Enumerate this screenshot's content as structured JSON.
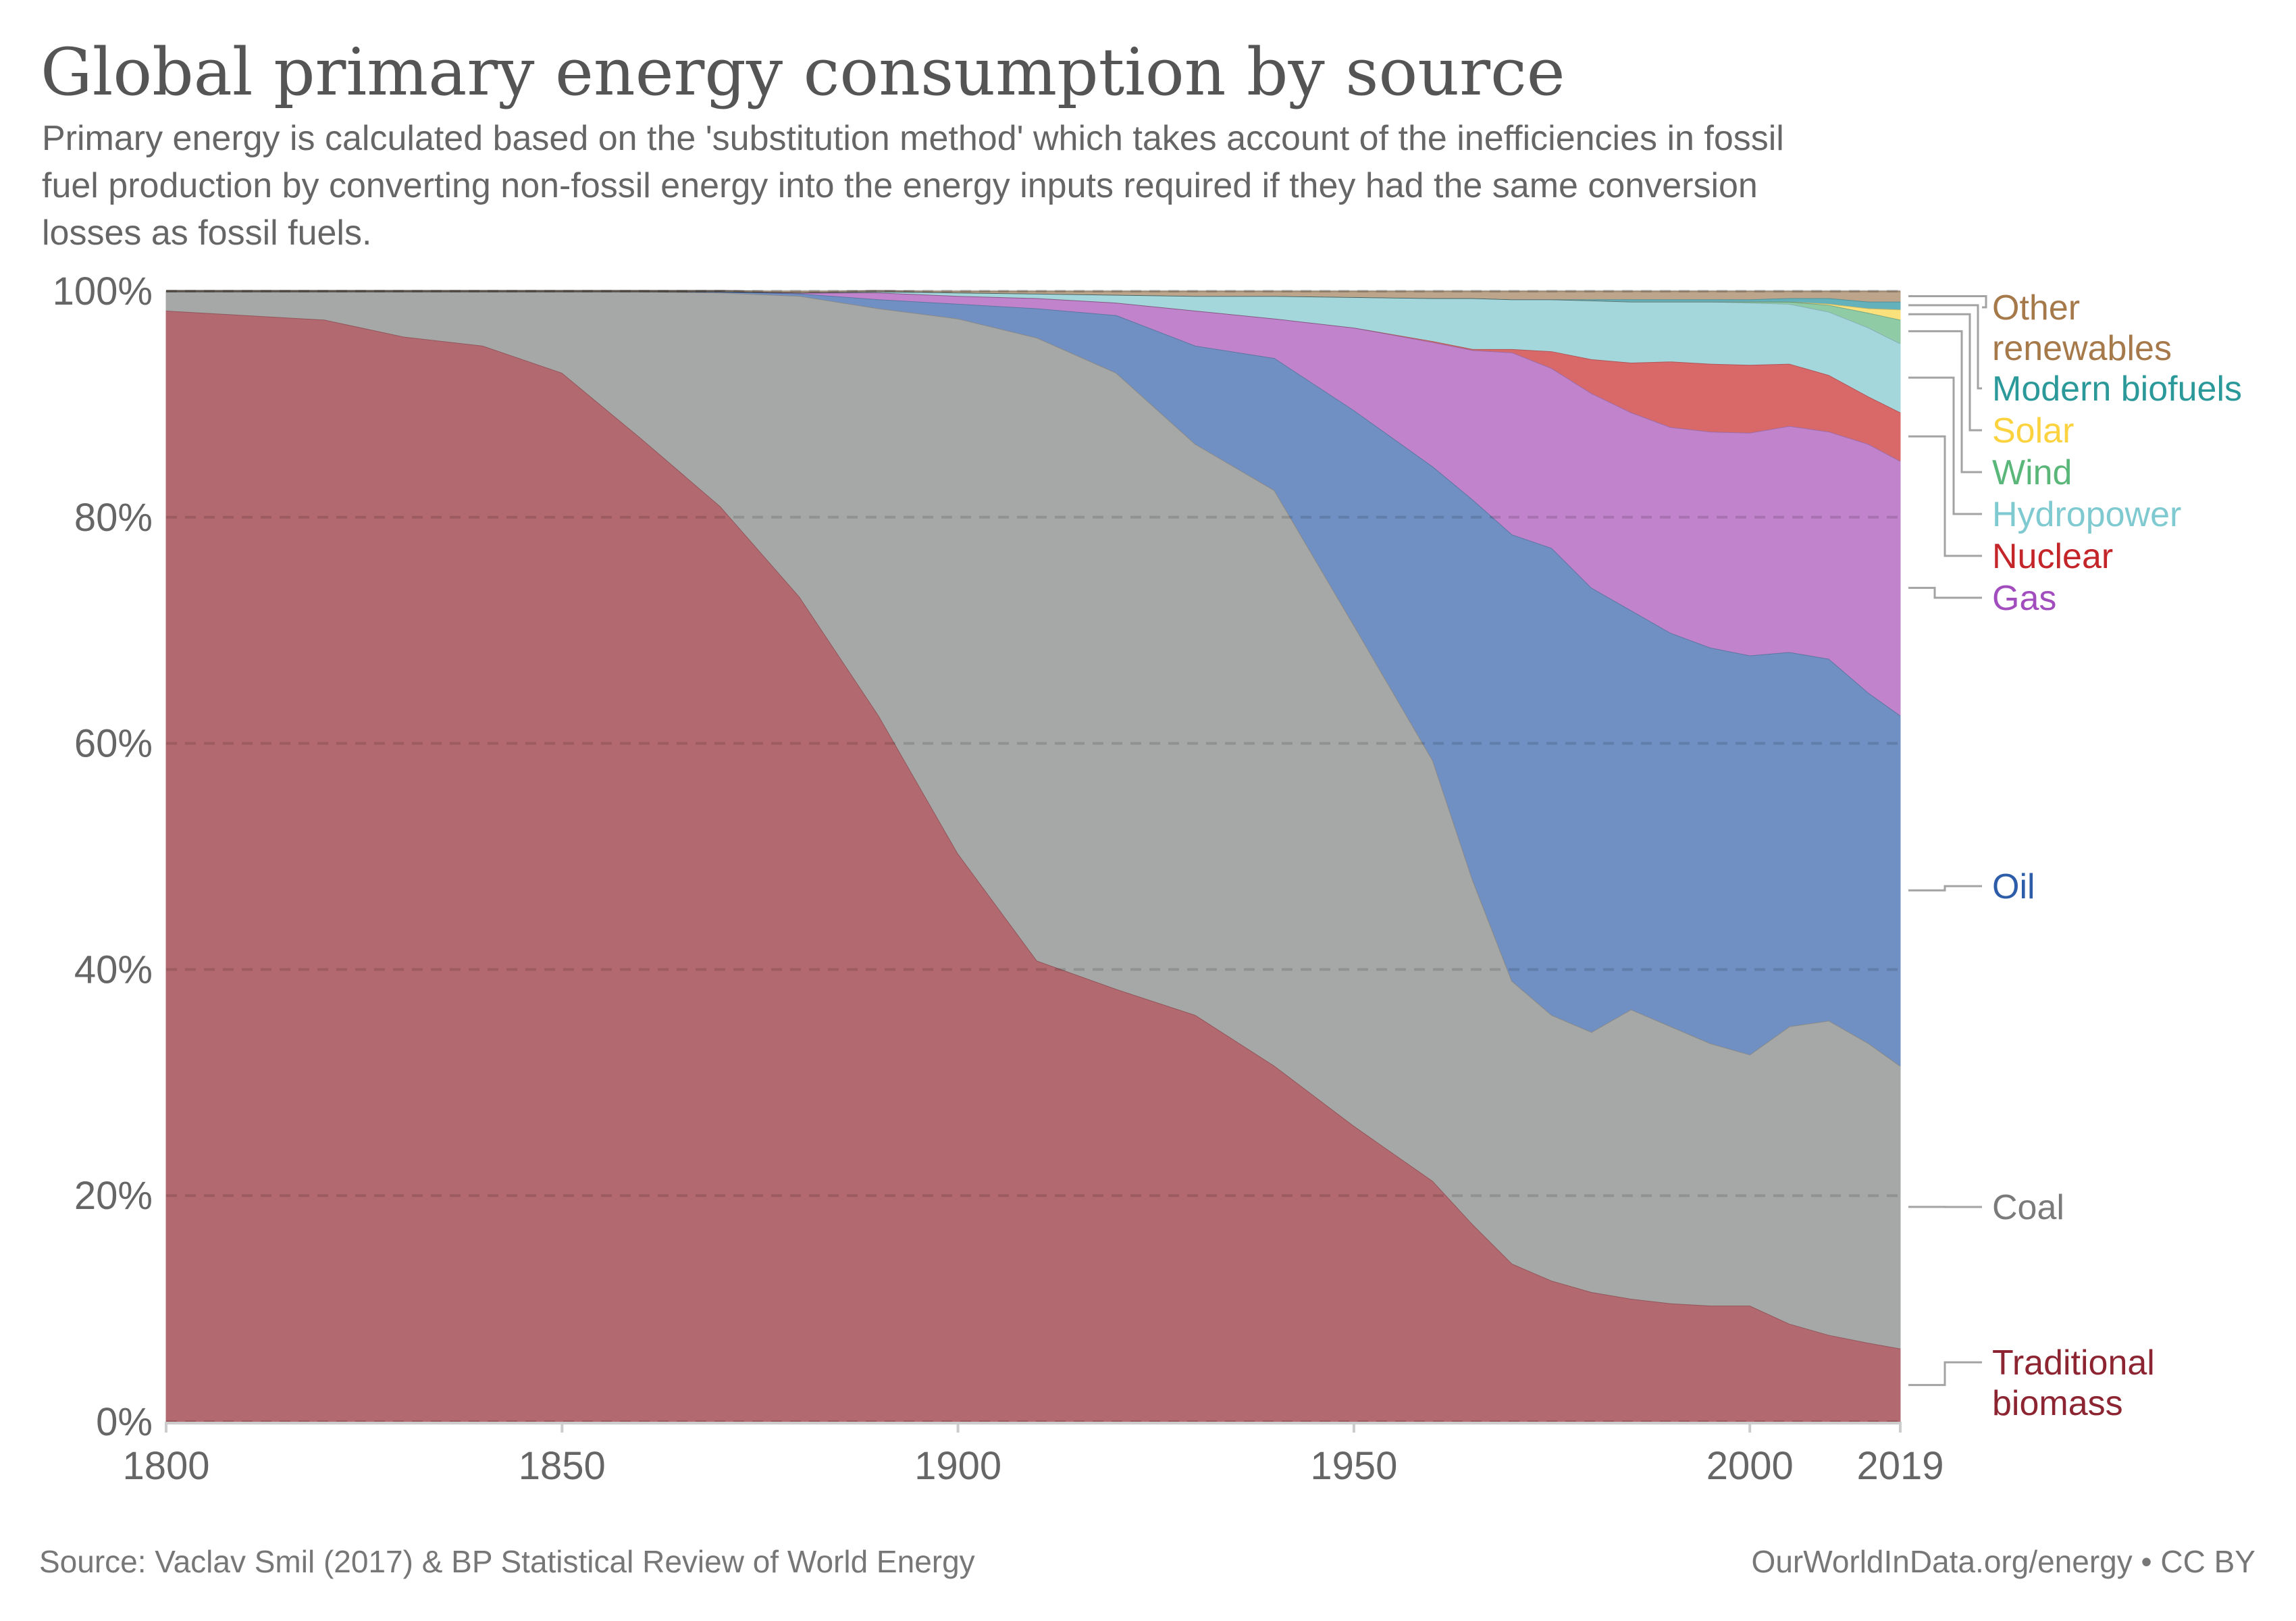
{
  "chart_data": {
    "type": "area",
    "stacked": true,
    "normalized": true,
    "title": "Global primary energy consumption by source",
    "subtitle_lines": [
      "Primary energy is calculated based on the 'substitution method' which takes account of the inefficiencies in fossil",
      "fuel production by converting non-fossil energy into the energy inputs required if they had the same conversion",
      "losses as fossil fuels."
    ],
    "xlabel": "",
    "ylabel": "",
    "xlim": [
      1800,
      2019
    ],
    "ylim": [
      0,
      100
    ],
    "x_ticks": [
      1800,
      1850,
      1900,
      1950,
      2000,
      2019
    ],
    "y_ticks": [
      0,
      20,
      40,
      60,
      80,
      100
    ],
    "y_tick_labels": [
      "0%",
      "20%",
      "40%",
      "60%",
      "80%",
      "100%"
    ],
    "grid": true,
    "legend_placement": "right",
    "x": [
      1800,
      1820,
      1830,
      1840,
      1850,
      1860,
      1870,
      1880,
      1890,
      1900,
      1910,
      1920,
      1930,
      1940,
      1950,
      1960,
      1965,
      1970,
      1975,
      1980,
      1985,
      1990,
      1995,
      2000,
      2005,
      2010,
      2015,
      2019
    ],
    "series": [
      {
        "name": "Traditional biomass",
        "legend_lines": [
          "Traditional",
          "biomass"
        ],
        "color": "#b36970",
        "label_color": "#8c2531",
        "values": [
          98.3,
          97.5,
          96.0,
          95.2,
          92.8,
          87.0,
          81.0,
          73.0,
          62.5,
          50.3,
          40.8,
          38.3,
          36.0,
          31.5,
          26.2,
          21.3,
          17.5,
          14.0,
          12.5,
          11.5,
          10.9,
          10.5,
          10.3,
          10.3,
          8.7,
          7.7,
          7.0,
          6.5
        ]
      },
      {
        "name": "Coal",
        "legend_lines": [
          "Coal"
        ],
        "color": "#a6a8a7",
        "label_color": "#7a7a7a",
        "values": [
          1.7,
          2.5,
          4.0,
          4.8,
          7.2,
          13.0,
          18.9,
          26.6,
          36.0,
          47.3,
          55.1,
          54.5,
          50.5,
          50.9,
          44.3,
          37.2,
          30.5,
          25.0,
          23.5,
          23.0,
          25.6,
          24.5,
          23.2,
          22.2,
          26.3,
          27.8,
          26.5,
          25.0
        ]
      },
      {
        "name": "Oil",
        "legend_lines": [
          "Oil"
        ],
        "color": "#7090c4",
        "label_color": "#2d5ca8",
        "values": [
          0,
          0,
          0,
          0,
          0,
          0,
          0.1,
          0.2,
          0.8,
          1.3,
          2.6,
          5.1,
          8.7,
          11.7,
          19.0,
          26.0,
          33.6,
          39.5,
          41.3,
          39.3,
          35.3,
          34.8,
          35.0,
          35.3,
          33.1,
          32.0,
          31.0,
          31.0
        ]
      },
      {
        "name": "Gas",
        "legend_lines": [
          "Gas"
        ],
        "color": "#c184cc",
        "label_color": "#a24dbd",
        "values": [
          0,
          0,
          0,
          0,
          0,
          0,
          0,
          0.1,
          0.6,
          0.7,
          0.9,
          1.1,
          3.1,
          3.5,
          7.3,
          11.0,
          13.2,
          16.1,
          15.9,
          17.2,
          17.5,
          18.2,
          19.1,
          19.7,
          20.0,
          20.1,
          22.0,
          22.5
        ]
      },
      {
        "name": "Nuclear",
        "legend_lines": [
          "Nuclear"
        ],
        "color": "#d96869",
        "label_color": "#c42529",
        "values": [
          0,
          0,
          0,
          0,
          0,
          0,
          0,
          0,
          0,
          0,
          0,
          0,
          0,
          0,
          0,
          0.1,
          0.1,
          0.3,
          1.5,
          3.0,
          4.4,
          5.8,
          6.0,
          6.0,
          5.5,
          5.0,
          4.2,
          4.3
        ]
      },
      {
        "name": "Hydropower",
        "legend_lines": [
          "Hydropower"
        ],
        "color": "#a4d7dc",
        "label_color": "#7ecad0",
        "values": [
          0,
          0,
          0,
          0,
          0,
          0,
          0,
          0,
          0.1,
          0.3,
          0.4,
          0.7,
          1.3,
          2.0,
          2.7,
          3.8,
          4.5,
          4.4,
          4.6,
          5.2,
          5.4,
          5.3,
          5.5,
          5.5,
          5.3,
          5.6,
          6.1,
          6.1
        ]
      },
      {
        "name": "Wind",
        "legend_lines": [
          "Wind"
        ],
        "color": "#8fcca5",
        "label_color": "#5ab679",
        "values": [
          0,
          0,
          0,
          0,
          0,
          0,
          0,
          0,
          0,
          0,
          0,
          0,
          0,
          0,
          0,
          0,
          0,
          0,
          0,
          0,
          0,
          0,
          0,
          0.1,
          0.2,
          0.6,
          1.3,
          2.1
        ]
      },
      {
        "name": "Solar",
        "legend_lines": [
          "Solar"
        ],
        "color": "#fbe17b",
        "label_color": "#fdd23f",
        "values": [
          0,
          0,
          0,
          0,
          0,
          0,
          0,
          0,
          0,
          0,
          0,
          0,
          0,
          0,
          0,
          0,
          0,
          0,
          0,
          0,
          0,
          0,
          0,
          0,
          0,
          0.1,
          0.4,
          0.9
        ]
      },
      {
        "name": "Modern biofuels",
        "legend_lines": [
          "Modern biofuels"
        ],
        "color": "#63b1bb",
        "label_color": "#2b9999",
        "values": [
          0,
          0,
          0,
          0,
          0,
          0,
          0,
          0,
          0,
          0,
          0,
          0,
          0,
          0,
          0,
          0,
          0,
          0,
          0,
          0.1,
          0.2,
          0.2,
          0.2,
          0.2,
          0.3,
          0.5,
          0.6,
          0.7
        ]
      },
      {
        "name": "Other renewables",
        "legend_lines": [
          "Other",
          "renewables"
        ],
        "color": "#bca58a",
        "label_color": "#a5794a",
        "values": [
          0,
          0,
          0,
          0,
          0,
          0,
          0,
          0,
          0,
          0,
          0.2,
          0.3,
          0.4,
          0.4,
          0.5,
          0.6,
          0.6,
          0.7,
          0.7,
          0.7,
          0.7,
          0.7,
          0.7,
          0.7,
          0.6,
          0.6,
          0.9,
          0.9
        ]
      }
    ]
  },
  "header": {
    "title": "Global primary energy consumption by source",
    "subtitle_lines": [
      "Primary energy is calculated based on the 'substitution method' which takes account of the inefficiencies in fossil",
      "fuel production by converting non-fossil energy into the energy inputs required if they had the same conversion",
      "losses as fossil fuels."
    ]
  },
  "footer": {
    "source": "Source: Vaclav Smil (2017) & BP Statistical Review of World Energy",
    "credit": "OurWorldInData.org/energy • CC BY"
  }
}
